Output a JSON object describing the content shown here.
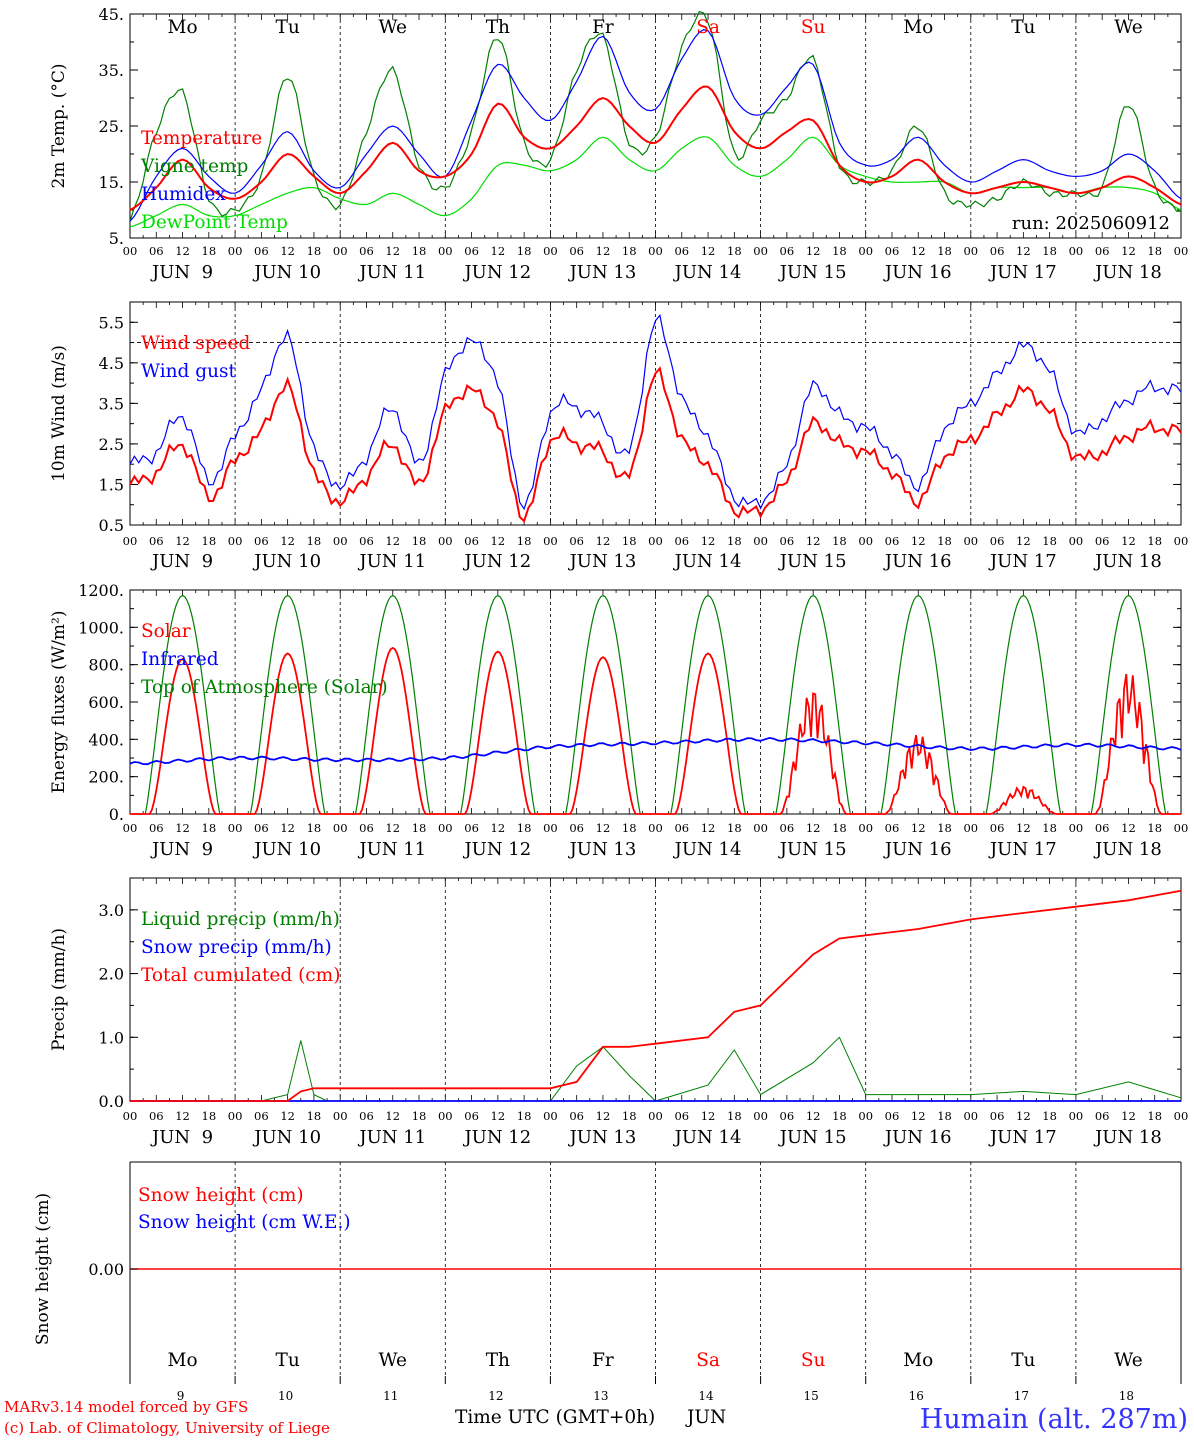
{
  "colors": {
    "temperature": "#ff0000",
    "vigne": "#008000",
    "humidex": "#0000ff",
    "dewpoint": "#00dd00",
    "wind_speed": "#ff0000",
    "wind_gust": "#0000ff",
    "solar": "#ff0000",
    "infrared": "#0000ff",
    "toa": "#008000",
    "liquid": "#008000",
    "snow_precip": "#0000ff",
    "total_cum": "#ff0000",
    "snow_h": "#ff0000",
    "snow_we": "#0000ff",
    "weekend": "#ff0000",
    "station": "#3333ff"
  },
  "days": {
    "weekdays": [
      "Mo",
      "Tu",
      "We",
      "Th",
      "Fr",
      "Sa",
      "Su",
      "Mo",
      "Tu",
      "We"
    ],
    "weekend_flags": [
      false,
      false,
      false,
      false,
      false,
      true,
      true,
      false,
      false,
      false
    ],
    "dates": [
      "9",
      "10",
      "11",
      "12",
      "13",
      "14",
      "15",
      "16",
      "17",
      "18"
    ],
    "date_labels": [
      "JUN  9",
      "JUN 10",
      "JUN 11",
      "JUN 12",
      "JUN 13",
      "JUN 14",
      "JUN 15",
      "JUN 16",
      "JUN 17",
      "JUN 18"
    ],
    "hour_ticks": [
      "00",
      "06",
      "12",
      "18"
    ],
    "end_hour": "00"
  },
  "footer": {
    "model_line1": "MARv3.14 model forced by GFS",
    "model_line2": "(c) Lab. of Climatology, University of Liege",
    "xaxis_label": "Time UTC (GMT+0h)",
    "month": "JUN",
    "station": "Humain (alt. 287m)"
  },
  "chart_data": [
    {
      "type": "line",
      "ylabel": "2m Temp. (°C)",
      "ylim": [
        5,
        45
      ],
      "yticks": [
        5,
        15,
        25,
        35,
        45
      ],
      "ytick_labels": [
        "5.",
        "15.",
        "25.",
        "35.",
        "45."
      ],
      "annotation": "run: 2025060912",
      "x_hours": [
        0,
        6,
        12,
        18,
        24,
        30,
        36,
        42,
        48,
        54,
        60,
        66,
        72,
        78,
        84,
        90,
        96,
        102,
        108,
        114,
        120,
        126,
        132,
        138,
        144,
        150,
        156,
        162,
        168,
        174,
        180,
        186,
        192,
        198,
        204,
        210,
        216,
        222,
        228,
        234,
        240
      ],
      "series": [
        {
          "name": "Temperature",
          "color_key": "temperature",
          "values": [
            10,
            14,
            19,
            14,
            12,
            15,
            20,
            16,
            13,
            17,
            22,
            17,
            16,
            20,
            29,
            23,
            21,
            25,
            30,
            25,
            22,
            28,
            32,
            24,
            21,
            24,
            26,
            18,
            15,
            16,
            19,
            15,
            13,
            14,
            15,
            14,
            13,
            14,
            16,
            14,
            11
          ]
        },
        {
          "name": "Vigne temp",
          "color_key": "vigne",
          "values": [
            8,
            24,
            31,
            12,
            10,
            16,
            34,
            16,
            11,
            24,
            35,
            18,
            14,
            24,
            41,
            22,
            19,
            35,
            41,
            22,
            23,
            39,
            44,
            20,
            26,
            30,
            37,
            18,
            15,
            17,
            25,
            13,
            11,
            12,
            15,
            13,
            13,
            14,
            29,
            14,
            10
          ]
        },
        {
          "name": "Humidex",
          "color_key": "humidex",
          "values": [
            8,
            16,
            21,
            16,
            13,
            18,
            24,
            17,
            14,
            20,
            25,
            20,
            16,
            26,
            36,
            30,
            26,
            33,
            41,
            31,
            28,
            37,
            42,
            30,
            27,
            32,
            36,
            22,
            18,
            19,
            23,
            18,
            15,
            17,
            19,
            17,
            16,
            17,
            20,
            17,
            12
          ]
        },
        {
          "name": "DewPoint Temp",
          "color_key": "dewpoint",
          "values": [
            7,
            9,
            11,
            9,
            9,
            11,
            13,
            14,
            12,
            11,
            13,
            11,
            9,
            12,
            18,
            18,
            17,
            19,
            23,
            19,
            17,
            21,
            23,
            18,
            16,
            19,
            23,
            18,
            16,
            15,
            15,
            15,
            13,
            14,
            14,
            14,
            13,
            14,
            14,
            13,
            10
          ]
        }
      ],
      "legend": [
        "Temperature",
        "Vigne temp",
        "Humidex",
        "DewPoint Temp"
      ]
    },
    {
      "type": "line",
      "ylabel": "10m Wind (m/s)",
      "ylim": [
        0.5,
        6
      ],
      "yticks": [
        0.5,
        1.5,
        2.5,
        3.5,
        4.5,
        5.5
      ],
      "ytick_labels": [
        "0.5",
        "1.5",
        "2.5",
        "3.5",
        "4.5",
        "5.5"
      ],
      "reference_line": 5,
      "x_hours": [
        0,
        6,
        12,
        18,
        24,
        30,
        36,
        42,
        48,
        54,
        60,
        66,
        72,
        78,
        84,
        90,
        96,
        102,
        108,
        114,
        120,
        126,
        132,
        138,
        144,
        150,
        156,
        162,
        168,
        174,
        180,
        186,
        192,
        198,
        204,
        210,
        216,
        222,
        228,
        234,
        240
      ],
      "series": [
        {
          "name": "Wind speed",
          "color_key": "wind_speed",
          "values": [
            1.5,
            1.8,
            2.5,
            1.2,
            2.1,
            2.8,
            3.9,
            1.8,
            1.1,
            1.7,
            2.5,
            1.5,
            3.3,
            3.8,
            3.0,
            0.7,
            2.6,
            2.5,
            2.3,
            1.7,
            4.2,
            2.6,
            2.0,
            0.9,
            0.9,
            1.6,
            3.0,
            2.5,
            2.3,
            1.8,
            1.1,
            2.2,
            2.6,
            3.2,
            3.8,
            3.3,
            2.2,
            2.3,
            2.7,
            2.9,
            2.8
          ]
        },
        {
          "name": "Wind gust",
          "color_key": "wind_gust",
          "values": [
            2.0,
            2.3,
            3.2,
            1.6,
            2.7,
            3.8,
            5.1,
            2.4,
            1.5,
            2.2,
            3.4,
            2.0,
            4.2,
            5.0,
            4.0,
            1.0,
            3.3,
            3.4,
            3.0,
            2.3,
            5.5,
            3.6,
            2.7,
            1.2,
            1.1,
            2.0,
            3.9,
            3.2,
            2.9,
            2.3,
            1.5,
            2.9,
            3.5,
            4.2,
            4.9,
            4.3,
            2.8,
            3.1,
            3.6,
            3.9,
            3.8
          ]
        }
      ],
      "legend": [
        "Wind speed",
        "Wind gust"
      ]
    },
    {
      "type": "line",
      "ylabel": "Energy fluxes (W/m²)",
      "ylim": [
        0,
        1200
      ],
      "yticks": [
        0,
        200,
        400,
        600,
        800,
        1000,
        1200
      ],
      "ytick_labels": [
        "0.",
        "200.",
        "400.",
        "600.",
        "800.",
        "1000.",
        "1200."
      ],
      "solar_daily_peak": [
        830,
        860,
        890,
        870,
        840,
        860,
        680,
        430,
        150,
        770
      ],
      "toa_daily_peak": [
        1170,
        1170,
        1170,
        1170,
        1170,
        1170,
        1170,
        1170,
        1170,
        1170
      ],
      "infrared_x_hours": [
        0,
        24,
        48,
        72,
        96,
        120,
        144,
        168,
        192,
        216,
        240
      ],
      "infrared_values": [
        270,
        300,
        290,
        300,
        360,
        380,
        400,
        380,
        350,
        370,
        350
      ],
      "series": [
        {
          "name": "Solar",
          "color_key": "solar"
        },
        {
          "name": "Infrared",
          "color_key": "infrared"
        },
        {
          "name": "Top of Atmosphere (Solar)",
          "color_key": "toa"
        }
      ],
      "legend": [
        "Solar",
        "Infrared",
        "Top of Atmosphere (Solar)"
      ]
    },
    {
      "type": "line",
      "ylabel": "Precip (mm/h)",
      "ylim": [
        0,
        3.5
      ],
      "yticks": [
        0,
        1,
        2,
        3
      ],
      "ytick_labels": [
        "0.0",
        "1.0",
        "2.0",
        "3.0"
      ],
      "x_hours": [
        0,
        12,
        24,
        30,
        36,
        39,
        42,
        45,
        48,
        72,
        96,
        102,
        108,
        114,
        120,
        132,
        138,
        144,
        156,
        162,
        168,
        180,
        192,
        204,
        216,
        228,
        240
      ],
      "series": [
        {
          "name": "Liquid precip (mm/h)",
          "color_key": "liquid",
          "values": [
            0,
            0,
            0,
            0,
            0.1,
            0.95,
            0.1,
            0,
            0,
            0,
            0,
            0.55,
            0.85,
            0.4,
            0,
            0.25,
            0.8,
            0.1,
            0.6,
            1.0,
            0.1,
            0.1,
            0.1,
            0.15,
            0.1,
            0.3,
            0.05
          ]
        },
        {
          "name": "Snow precip (mm/h)",
          "color_key": "snow_precip",
          "values": [
            0,
            0,
            0,
            0,
            0,
            0,
            0,
            0,
            0,
            0,
            0,
            0,
            0,
            0,
            0,
            0,
            0,
            0,
            0,
            0,
            0,
            0,
            0,
            0,
            0,
            0,
            0
          ]
        },
        {
          "name": "Total cumulated (cm)",
          "color_key": "total_cum",
          "values": [
            0,
            0,
            0,
            0,
            0,
            0.15,
            0.2,
            0.2,
            0.2,
            0.2,
            0.2,
            0.3,
            0.85,
            0.85,
            0.9,
            1.0,
            1.4,
            1.5,
            2.3,
            2.55,
            2.6,
            2.7,
            2.85,
            2.95,
            3.05,
            3.15,
            3.3
          ]
        }
      ],
      "legend": [
        "Liquid precip (mm/h)",
        "Snow precip (mm/h)",
        "Total cumulated (cm)"
      ]
    },
    {
      "type": "line",
      "ylabel": "Snow height (cm)",
      "ytick_labels": [
        "0.00"
      ],
      "x_hours": [
        0,
        240
      ],
      "series": [
        {
          "name": "Snow height (cm)",
          "color_key": "snow_h",
          "values": [
            0,
            0
          ]
        },
        {
          "name": "Snow height (cm W.E.)",
          "color_key": "snow_we",
          "values": [
            0,
            0
          ]
        }
      ],
      "legend": [
        "Snow height (cm)",
        "Snow height (cm W.E.)"
      ]
    }
  ]
}
